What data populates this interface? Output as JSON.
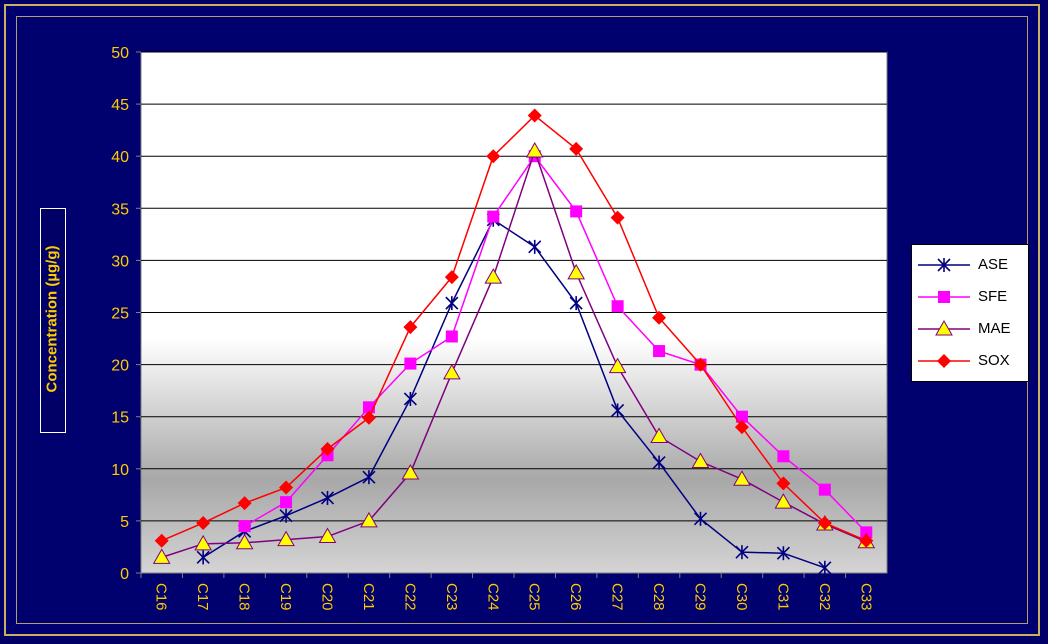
{
  "chart_data": {
    "type": "line",
    "ylabel": "Concentration (µg/g)",
    "xlabel": "",
    "ylim": [
      0,
      50
    ],
    "yticks": [
      "0",
      "5",
      "10",
      "15",
      "20",
      "25",
      "30",
      "35",
      "40",
      "45",
      "50"
    ],
    "categories": [
      "C16",
      "C17",
      "C18",
      "C19",
      "C20",
      "C21",
      "C22",
      "C23",
      "C24",
      "C25",
      "C26",
      "C27",
      "C28",
      "C29",
      "C30",
      "C31",
      "C32",
      "C33"
    ],
    "grid": true,
    "legend_position": "right",
    "series": [
      {
        "name": "ASE",
        "marker": "asterisk",
        "color": "#000080",
        "values": [
          null,
          1.5,
          4.0,
          5.5,
          7.2,
          9.2,
          16.7,
          25.9,
          33.9,
          31.3,
          25.9,
          15.6,
          10.6,
          5.2,
          2.0,
          1.9,
          0.5,
          null
        ]
      },
      {
        "name": "SFE",
        "marker": "square",
        "color": "#ff00ff",
        "values": [
          null,
          null,
          4.5,
          6.8,
          11.3,
          15.9,
          20.1,
          22.7,
          34.2,
          40.0,
          34.7,
          25.6,
          21.3,
          20.0,
          15.0,
          11.2,
          8.0,
          3.9
        ]
      },
      {
        "name": "MAE",
        "marker": "triangle",
        "color": "#800080",
        "values": [
          1.5,
          2.8,
          2.9,
          3.2,
          3.5,
          5.0,
          9.6,
          19.2,
          28.4,
          40.5,
          28.8,
          19.8,
          13.1,
          10.7,
          9.0,
          6.8,
          4.7,
          3.0
        ]
      },
      {
        "name": "SOX",
        "marker": "diamond",
        "color": "#ff0000",
        "values": [
          3.1,
          4.8,
          6.7,
          8.2,
          11.9,
          14.9,
          23.6,
          28.4,
          40.0,
          43.9,
          40.7,
          34.1,
          24.5,
          20.0,
          14.0,
          8.6,
          4.8,
          3.1
        ]
      }
    ]
  }
}
